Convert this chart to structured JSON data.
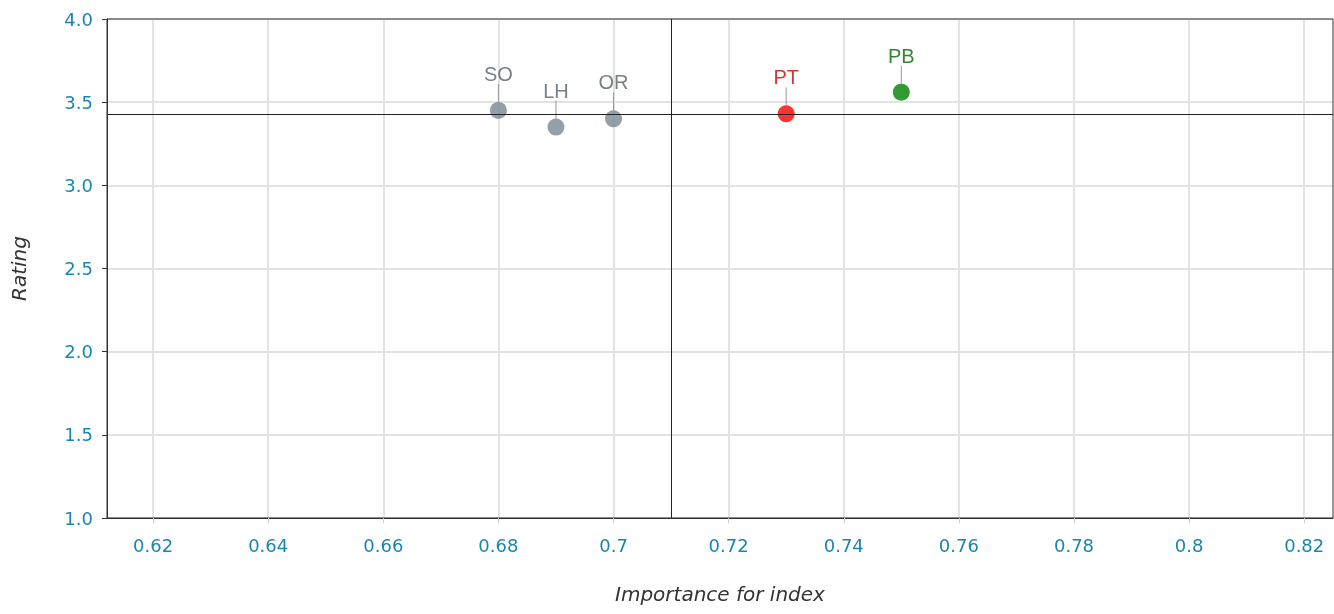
{
  "chart_data": {
    "type": "scatter",
    "xlabel": "Importance for index",
    "ylabel": "Rating",
    "xlim": [
      0.612,
      0.825
    ],
    "xticks": [
      0.62,
      0.64,
      0.66,
      0.68,
      0.7,
      0.72,
      0.74,
      0.76,
      0.78,
      0.8,
      0.82
    ],
    "ylim": [
      1.0,
      4.0
    ],
    "yticks": [
      {
        "value": 1.0,
        "label": "1.0"
      },
      {
        "value": 1.5,
        "label": "1.5"
      },
      {
        "value": 2.0,
        "label": "2.0"
      },
      {
        "value": 2.5,
        "label": "2.5"
      },
      {
        "value": 3.0,
        "label": "3.0"
      },
      {
        "value": 3.5,
        "label": "3.5"
      },
      {
        "value": 4.0,
        "label": "4.0"
      }
    ],
    "grid": true,
    "legend": false,
    "marker": "circle",
    "ref_lines": [
      {
        "axis": "x",
        "value": 0.71,
        "color": "#222222"
      },
      {
        "axis": "y",
        "value": 3.43,
        "color": "#222222"
      }
    ],
    "series": [
      {
        "name": "SO",
        "color": "#7a8795",
        "x": [
          0.68
        ],
        "values": [
          3.45
        ]
      },
      {
        "name": "LH",
        "color": "#7a8795",
        "x": [
          0.69
        ],
        "values": [
          3.35
        ]
      },
      {
        "name": "OR",
        "color": "#7a8795",
        "x": [
          0.7
        ],
        "values": [
          3.4
        ]
      },
      {
        "name": "PT",
        "color": "#ff0000",
        "x": [
          0.73
        ],
        "values": [
          3.43
        ]
      },
      {
        "name": "PB",
        "color": "#008000",
        "x": [
          0.75
        ],
        "values": [
          3.56
        ]
      }
    ]
  }
}
